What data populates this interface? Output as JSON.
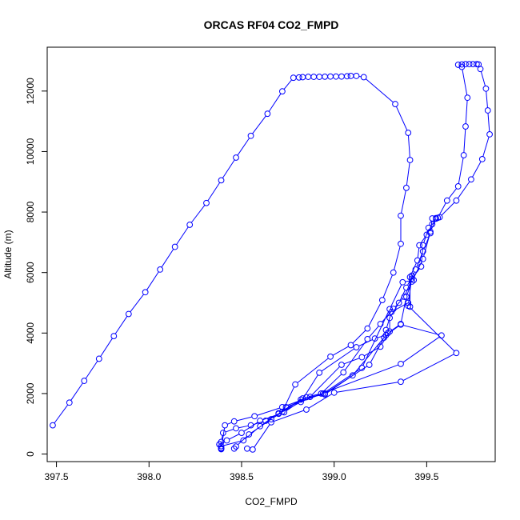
{
  "chart_data": {
    "type": "scatter",
    "connected": true,
    "marker": "open-circle",
    "title": "ORCAS RF04 CO2_FMPD",
    "xlabel": "CO2_FMPD",
    "ylabel": "Altitude (m)",
    "xlim": [
      397.45,
      399.87
    ],
    "ylim": [
      -250,
      13450
    ],
    "x_ticks": [
      397.5,
      398.0,
      398.5,
      399.0,
      399.5
    ],
    "x_tick_labels": [
      "397.5",
      "398.0",
      "398.5",
      "399.0",
      "399.5"
    ],
    "y_ticks": [
      0,
      2000,
      4000,
      6000,
      8000,
      10000,
      12000
    ],
    "y_tick_labels": [
      "0",
      "2000",
      "4000",
      "6000",
      "8000",
      "10000",
      "12000"
    ],
    "grid": false,
    "legend": "none",
    "series": [
      {
        "color": "#0000ff",
        "points": [
          [
            397.48,
            950
          ],
          [
            397.57,
            1700
          ],
          [
            397.65,
            2420
          ],
          [
            397.73,
            3150
          ],
          [
            397.81,
            3900
          ],
          [
            397.89,
            4630
          ],
          [
            397.98,
            5350
          ],
          [
            398.06,
            6100
          ],
          [
            398.14,
            6850
          ],
          [
            398.22,
            7580
          ],
          [
            398.31,
            8300
          ],
          [
            398.39,
            9050
          ],
          [
            398.47,
            9800
          ],
          [
            398.55,
            10520
          ],
          [
            398.64,
            11250
          ],
          [
            398.72,
            11990
          ],
          [
            398.78,
            12440
          ],
          [
            398.81,
            12450
          ],
          [
            398.83,
            12460
          ],
          [
            398.86,
            12470
          ],
          [
            398.89,
            12470
          ],
          [
            398.92,
            12470
          ],
          [
            398.95,
            12475
          ],
          [
            398.98,
            12480
          ],
          [
            399.01,
            12480
          ],
          [
            399.04,
            12480
          ],
          [
            399.07,
            12490
          ],
          [
            399.09,
            12500
          ],
          [
            399.12,
            12500
          ],
          [
            399.16,
            12460
          ],
          [
            399.33,
            11570
          ],
          [
            399.4,
            10620
          ],
          [
            399.41,
            9720
          ],
          [
            399.39,
            8800
          ],
          [
            399.36,
            7880
          ],
          [
            399.36,
            6950
          ],
          [
            399.32,
            6000
          ],
          [
            399.26,
            5090
          ],
          [
            399.18,
            4150
          ],
          [
            399.09,
            3600
          ],
          [
            398.98,
            3220
          ],
          [
            398.79,
            2300
          ],
          [
            398.72,
            1400
          ],
          [
            398.63,
            1100
          ],
          [
            398.55,
            950
          ],
          [
            398.47,
            850
          ],
          [
            398.4,
            700
          ],
          [
            398.39,
            400
          ],
          [
            398.38,
            320
          ],
          [
            398.39,
            200
          ]
        ]
      },
      {
        "color": "#0000ff",
        "points": [
          [
            398.39,
            180
          ],
          [
            398.41,
            950
          ],
          [
            398.46,
            1080
          ],
          [
            398.57,
            1250
          ],
          [
            398.72,
            1550
          ],
          [
            398.87,
            1890
          ],
          [
            399.04,
            2950
          ],
          [
            399.15,
            3200
          ],
          [
            399.25,
            3550
          ],
          [
            399.3,
            4050
          ],
          [
            399.3,
            4500
          ],
          [
            399.35,
            5000
          ],
          [
            399.39,
            5500
          ],
          [
            399.44,
            6100
          ],
          [
            399.48,
            6700
          ],
          [
            399.52,
            7300
          ],
          [
            399.53,
            7790
          ],
          [
            399.55,
            7800
          ],
          [
            399.56,
            7810
          ],
          [
            399.61,
            8380
          ],
          [
            399.67,
            8850
          ],
          [
            399.7,
            9880
          ],
          [
            399.71,
            10830
          ],
          [
            399.72,
            11780
          ],
          [
            399.69,
            12800
          ],
          [
            399.67,
            12870
          ],
          [
            399.69,
            12880
          ],
          [
            399.71,
            12890
          ],
          [
            399.73,
            12890
          ],
          [
            399.75,
            12890
          ],
          [
            399.77,
            12890
          ],
          [
            399.78,
            12880
          ],
          [
            399.79,
            12730
          ],
          [
            399.82,
            12080
          ],
          [
            399.83,
            11360
          ],
          [
            399.84,
            10570
          ],
          [
            399.8,
            9750
          ],
          [
            399.74,
            9080
          ],
          [
            399.66,
            8380
          ],
          [
            399.57,
            7830
          ],
          [
            399.51,
            7480
          ],
          [
            399.48,
            6900
          ],
          [
            399.47,
            6200
          ],
          [
            399.42,
            5800
          ],
          [
            399.38,
            5200
          ],
          [
            399.32,
            4800
          ],
          [
            399.25,
            4300
          ],
          [
            399.18,
            3800
          ],
          [
            399.05,
            2700
          ],
          [
            398.93,
            2000
          ],
          [
            398.85,
            1880
          ],
          [
            398.73,
            1380
          ],
          [
            398.6,
            1100
          ],
          [
            398.5,
            700
          ],
          [
            398.42,
            450
          ],
          [
            398.38,
            320
          ],
          [
            398.39,
            160
          ]
        ]
      },
      {
        "color": "#0000ff",
        "points": [
          [
            398.39,
            260
          ],
          [
            398.51,
            450
          ],
          [
            398.6,
            920
          ],
          [
            398.7,
            1350
          ],
          [
            398.82,
            1800
          ],
          [
            398.95,
            2000
          ],
          [
            399.19,
            2950
          ],
          [
            399.27,
            3850
          ],
          [
            399.28,
            4100
          ],
          [
            399.31,
            4700
          ],
          [
            399.4,
            5000
          ],
          [
            399.41,
            4870
          ],
          [
            399.41,
            5850
          ],
          [
            399.45,
            6400
          ],
          [
            399.46,
            6900
          ],
          [
            399.5,
            7250
          ],
          [
            399.53,
            7600
          ],
          [
            399.55,
            7780
          ],
          [
            399.52,
            7350
          ],
          [
            399.48,
            6450
          ],
          [
            399.42,
            5700
          ],
          [
            399.39,
            5200
          ],
          [
            399.36,
            4300
          ],
          [
            399.29,
            4000
          ],
          [
            399.1,
            2600
          ],
          [
            398.95,
            1970
          ],
          [
            398.83,
            1840
          ],
          [
            398.66,
            1150
          ],
          [
            398.54,
            650
          ],
          [
            398.47,
            250
          ],
          [
            398.46,
            180
          ]
        ]
      },
      {
        "color": "#0000ff",
        "points": [
          [
            398.53,
            180
          ],
          [
            398.56,
            150
          ],
          [
            398.66,
            1050
          ],
          [
            398.85,
            1470
          ],
          [
            399.0,
            2030
          ],
          [
            399.36,
            2390
          ],
          [
            399.66,
            3340
          ],
          [
            399.4,
            4900
          ],
          [
            399.42,
            5900
          ],
          [
            399.43,
            5750
          ],
          [
            399.37,
            5680
          ],
          [
            399.3,
            4790
          ],
          [
            399.15,
            2850
          ],
          [
            398.94,
            2000
          ],
          [
            398.74,
            1550
          ],
          [
            399.36,
            2980
          ],
          [
            399.58,
            3920
          ],
          [
            399.36,
            4280
          ],
          [
            399.28,
            3930
          ],
          [
            399.22,
            3820
          ],
          [
            399.12,
            3530
          ],
          [
            398.92,
            2690
          ],
          [
            398.82,
            1720
          ],
          [
            398.7,
            1330
          ]
        ]
      }
    ]
  }
}
